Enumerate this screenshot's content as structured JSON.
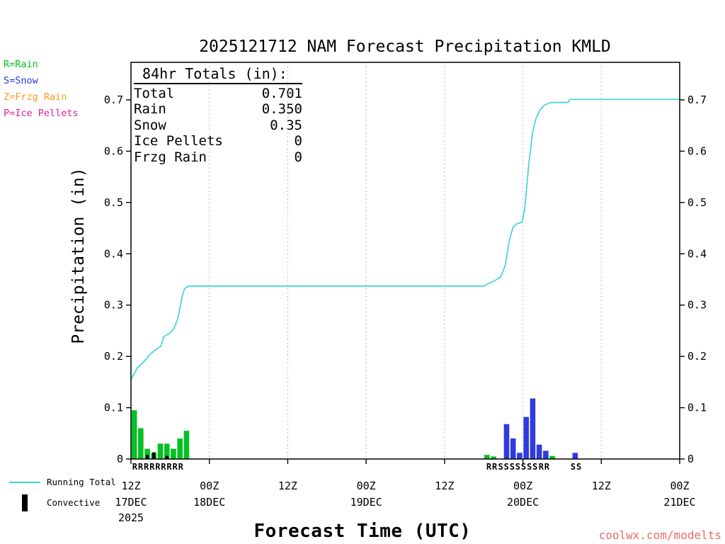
{
  "title": "2025121712 NAM Forecast Precipitation KMLD",
  "watermark": "coolwx.com/modelts",
  "colors": {
    "rain": "#00c222",
    "snow": "#2f3bdd",
    "frzg_rain": "#ff9922",
    "ice_pellets": "#dd2299",
    "line": "#3fd4d4",
    "convective": "#000000",
    "grid": "#aaaaaa",
    "watermark": "#ee6a6a"
  },
  "type_legend": [
    {
      "label": "R=Rain",
      "color_key": "rain"
    },
    {
      "label": "S=Snow",
      "color_key": "snow"
    },
    {
      "label": "Z=Frzg Rain",
      "color_key": "frzg_rain"
    },
    {
      "label": "P=Ice Pellets",
      "color_key": "ice_pellets"
    }
  ],
  "stats_box": {
    "heading": " 84hr Totals (in):",
    "rows": [
      {
        "label": "Total",
        "value": "0.701"
      },
      {
        "label": "Rain",
        "value": "0.350"
      },
      {
        "label": "Snow",
        "value": "0.35"
      },
      {
        "label": "Ice Pellets",
        "value": "0"
      },
      {
        "label": "Frzg Rain",
        "value": "0"
      }
    ]
  },
  "series_legend": [
    {
      "label": "Running Total",
      "swatch": "line",
      "color_key": "line"
    },
    {
      "label": "Convective",
      "swatch": "bar",
      "color_key": "convective"
    }
  ],
  "chart_data": {
    "type": "line+bar",
    "title": "2025121712 NAM Forecast Precipitation KMLD",
    "xlabel": "Forecast Time (UTC)",
    "ylabel": "Precipitation (in)",
    "ylim": [
      0,
      0.7
    ],
    "y_ticks": [
      0,
      0.1,
      0.2,
      0.3,
      0.4,
      0.5,
      0.6,
      0.7
    ],
    "x_hours_total": 84,
    "x_ticks": [
      {
        "hour": 0,
        "label": "12Z",
        "date": "17DEC",
        "year": "2025"
      },
      {
        "hour": 12,
        "label": "00Z",
        "date": "18DEC"
      },
      {
        "hour": 24,
        "label": "12Z"
      },
      {
        "hour": 36,
        "label": "00Z",
        "date": "19DEC"
      },
      {
        "hour": 48,
        "label": "12Z"
      },
      {
        "hour": 60,
        "label": "00Z",
        "date": "20DEC"
      },
      {
        "hour": 72,
        "label": "12Z"
      },
      {
        "hour": 84,
        "label": "00Z",
        "date": "21DEC"
      }
    ],
    "totals": {
      "total": 0.701,
      "rain": 0.35,
      "snow": 0.35,
      "ice_pellets": 0,
      "frzg_rain": 0
    },
    "running_total": {
      "name": "Running Total",
      "units": "in",
      "points": [
        [
          0,
          0.155
        ],
        [
          1,
          0.178
        ],
        [
          2,
          0.19
        ],
        [
          3,
          0.205
        ],
        [
          4,
          0.215
        ],
        [
          4.6,
          0.22
        ],
        [
          5,
          0.238
        ],
        [
          6,
          0.246
        ],
        [
          6.6,
          0.255
        ],
        [
          7.2,
          0.275
        ],
        [
          7.8,
          0.315
        ],
        [
          8.2,
          0.332
        ],
        [
          8.8,
          0.337
        ],
        [
          54,
          0.337
        ],
        [
          54.6,
          0.341
        ],
        [
          55.6,
          0.347
        ],
        [
          56.6,
          0.355
        ],
        [
          57.3,
          0.378
        ],
        [
          57.9,
          0.425
        ],
        [
          58.5,
          0.452
        ],
        [
          59,
          0.458
        ],
        [
          59.9,
          0.462
        ],
        [
          60.3,
          0.49
        ],
        [
          60.9,
          0.575
        ],
        [
          61.5,
          0.638
        ],
        [
          62,
          0.664
        ],
        [
          62.6,
          0.68
        ],
        [
          63.2,
          0.689
        ],
        [
          64,
          0.694
        ],
        [
          64.8,
          0.695
        ],
        [
          66.9,
          0.695
        ],
        [
          67.2,
          0.701
        ],
        [
          84,
          0.701
        ]
      ]
    },
    "bars": [
      {
        "hour": 0,
        "value": 0.095,
        "type": "rain"
      },
      {
        "hour": 1,
        "value": 0.06,
        "type": "rain"
      },
      {
        "hour": 2,
        "value": 0.02,
        "type": "rain"
      },
      {
        "hour": 3,
        "value": 0.012,
        "type": "rain"
      },
      {
        "hour": 4,
        "value": 0.03,
        "type": "rain"
      },
      {
        "hour": 5,
        "value": 0.03,
        "type": "rain"
      },
      {
        "hour": 6,
        "value": 0.02,
        "type": "rain"
      },
      {
        "hour": 7,
        "value": 0.04,
        "type": "rain"
      },
      {
        "hour": 8,
        "value": 0.055,
        "type": "rain"
      },
      {
        "hour": 54,
        "value": 0.008,
        "type": "rain"
      },
      {
        "hour": 55,
        "value": 0.005,
        "type": "rain"
      },
      {
        "hour": 57,
        "value": 0.068,
        "type": "snow"
      },
      {
        "hour": 58,
        "value": 0.04,
        "type": "snow"
      },
      {
        "hour": 59,
        "value": 0.012,
        "type": "snow"
      },
      {
        "hour": 60,
        "value": 0.082,
        "type": "snow"
      },
      {
        "hour": 61,
        "value": 0.118,
        "type": "snow"
      },
      {
        "hour": 62,
        "value": 0.028,
        "type": "snow"
      },
      {
        "hour": 63,
        "value": 0.016,
        "type": "snow"
      },
      {
        "hour": 64,
        "value": 0.006,
        "type": "rain"
      },
      {
        "hour": 67.5,
        "value": 0.012,
        "type": "snow"
      }
    ],
    "convective_bars": [
      {
        "hour": 2,
        "value": 0.008
      },
      {
        "hour": 3,
        "value": 0.013
      },
      {
        "hour": 5,
        "value": 0.006
      }
    ],
    "type_letters": [
      {
        "start_hour": 0.2,
        "chars": "RRRRRRRRR",
        "type": "rain"
      },
      {
        "start_hour": 54.4,
        "chars": "RR",
        "type": "rain"
      },
      {
        "start_hour": 56.2,
        "chars": "SSSSSSS",
        "type": "snow"
      },
      {
        "start_hour": 62.4,
        "chars": "RR",
        "type": "rain"
      },
      {
        "start_hour": 67.3,
        "chars": "SS",
        "type": "snow"
      }
    ]
  }
}
